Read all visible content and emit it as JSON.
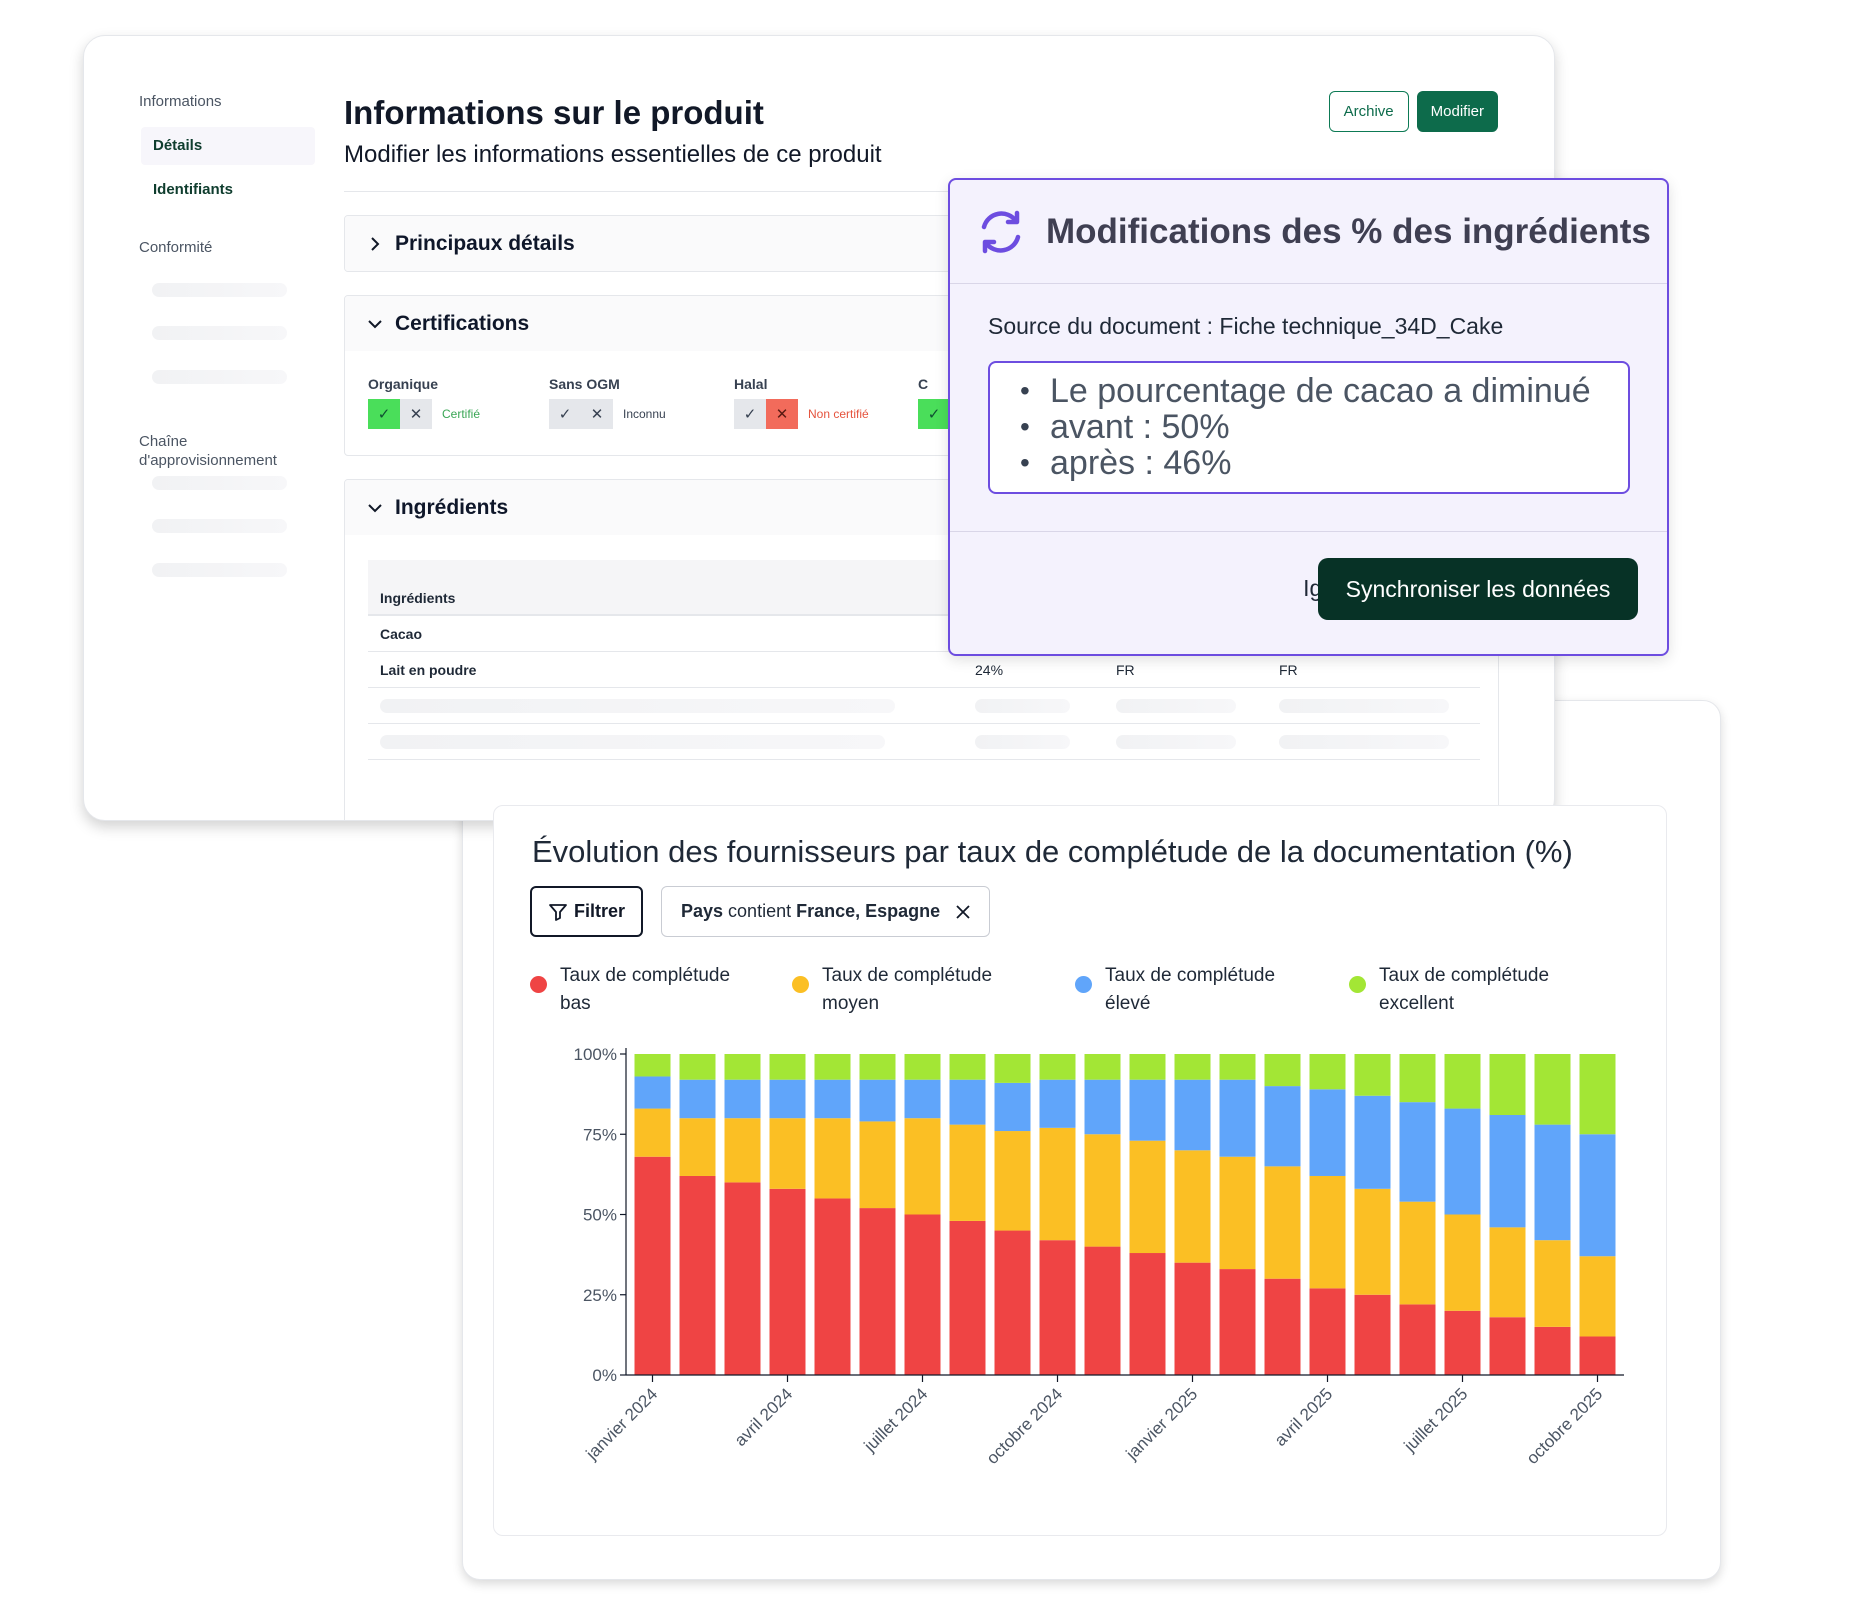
{
  "product": {
    "nav": {
      "section_info": "Informations",
      "item_details": "Détails",
      "item_identifiers": "Identifiants",
      "section_compliance": "Conformité",
      "section_supply": "Chaîne d'approvisionnement"
    },
    "title": "Informations sur le produit",
    "subtitle": "Modifier les informations essentielles de ce produit",
    "archive_label": "Archive",
    "edit_label": "Modifier",
    "sections": {
      "main_details": "Principaux détails",
      "certifications": "Certifications",
      "ingredients": "Ingrédients"
    },
    "certifications": [
      {
        "name": "Organique",
        "state": "yes",
        "status": "Certifié",
        "status_color": "#3aa655"
      },
      {
        "name": "Sans OGM",
        "state": "unknown",
        "status": "Inconnu",
        "status_color": "#374151"
      },
      {
        "name": "Halal",
        "state": "no",
        "status": "Non certifié",
        "status_color": "#e5533d"
      },
      {
        "name": "C",
        "state": "yes",
        "status": "",
        "status_color": "#3aa655"
      }
    ],
    "ingredients_table": {
      "header": "Ingrédients",
      "rows": [
        {
          "name": "Cacao",
          "pct": "",
          "origin1": "",
          "origin2": ""
        },
        {
          "name": "Lait en poudre",
          "pct": "24%",
          "origin1": "FR",
          "origin2": "FR"
        }
      ]
    }
  },
  "modal": {
    "title": "Modifications des % des ingrédients",
    "source": "Source du document : Fiche technique_34D_Cake",
    "changes": [
      "Le pourcentage de cacao a diminué",
      "avant : 50%",
      "après : 46%"
    ],
    "ignore_label": "Ignorer",
    "sync_label": "Synchroniser les données",
    "accent_color": "#6d4de0"
  },
  "chart_panel": {
    "filter_label": "Filtrer",
    "chip_prefix": "Pays",
    "chip_operator": " contient ",
    "chip_value": "France, Espagne"
  },
  "chart_data": {
    "type": "bar",
    "stacked": true,
    "title": "Évolution des fournisseurs par taux de complétude de la documentation (%)",
    "xlabel": "",
    "ylabel": "",
    "ylim": [
      0,
      100
    ],
    "y_ticks": [
      "0%",
      "25%",
      "50%",
      "75%",
      "100%"
    ],
    "x_tick_labels": [
      "janvier 2024",
      "avril 2024",
      "juillet 2024",
      "octobre 2024",
      "janvier 2025",
      "avril 2025",
      "juillet 2025",
      "octobre 2025"
    ],
    "x_tick_every": 3,
    "categories": [
      "janvier 2024",
      "février 2024",
      "mars 2024",
      "avril 2024",
      "mai 2024",
      "juin 2024",
      "juillet 2024",
      "août 2024",
      "septembre 2024",
      "octobre 2024",
      "novembre 2024",
      "décembre 2024",
      "janvier 2025",
      "février 2025",
      "mars 2025",
      "avril 2025",
      "mai 2025",
      "juin 2025",
      "juillet 2025",
      "août 2025",
      "septembre 2025",
      "octobre 2025"
    ],
    "series": [
      {
        "name": "Taux de complétude bas",
        "color": "#ef4444",
        "values": [
          68,
          62,
          60,
          58,
          55,
          52,
          50,
          48,
          45,
          42,
          40,
          38,
          35,
          33,
          30,
          27,
          25,
          22,
          20,
          18,
          15,
          12
        ]
      },
      {
        "name": "Taux de complétude moyen",
        "color": "#fbbf24",
        "values": [
          15,
          18,
          20,
          22,
          25,
          27,
          30,
          30,
          31,
          35,
          35,
          35,
          35,
          35,
          35,
          35,
          33,
          32,
          30,
          28,
          27,
          25
        ]
      },
      {
        "name": "Taux de complétude élevé",
        "color": "#60a5fa",
        "values": [
          10,
          12,
          12,
          12,
          12,
          13,
          12,
          14,
          15,
          15,
          17,
          19,
          22,
          24,
          25,
          27,
          29,
          31,
          33,
          35,
          36,
          38
        ]
      },
      {
        "name": "Taux de complétude excellent",
        "color": "#a3e635",
        "values": [
          7,
          8,
          8,
          8,
          8,
          8,
          8,
          8,
          9,
          8,
          8,
          8,
          8,
          8,
          10,
          11,
          13,
          15,
          17,
          19,
          22,
          25
        ]
      }
    ],
    "legend_position": "top",
    "grid": false
  }
}
